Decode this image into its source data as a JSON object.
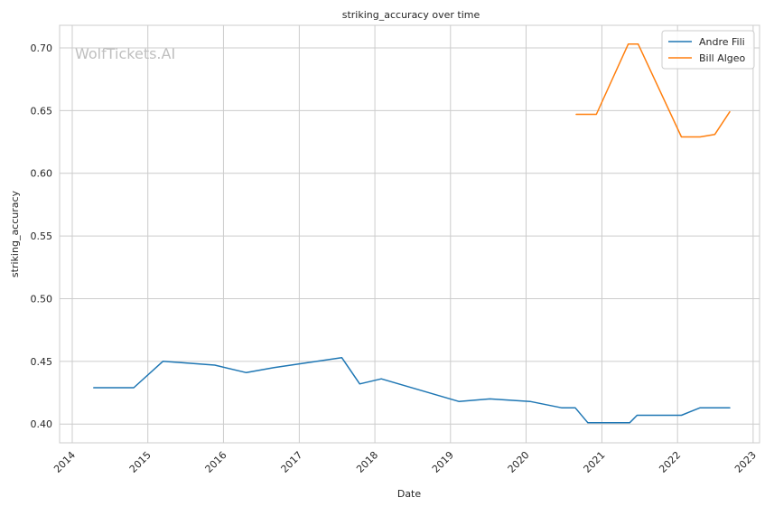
{
  "watermark": "WolfTickets.AI",
  "chart_data": {
    "type": "line",
    "title": "striking_accuracy over time",
    "xlabel": "Date",
    "ylabel": "striking_accuracy",
    "xlim": [
      "2013-11-01",
      "2023-02-01"
    ],
    "ylim": [
      0.385,
      0.718
    ],
    "x_ticks": [
      "2014",
      "2015",
      "2016",
      "2017",
      "2018",
      "2019",
      "2020",
      "2021",
      "2022",
      "2023"
    ],
    "y_ticks": [
      "0.40",
      "0.45",
      "0.50",
      "0.55",
      "0.60",
      "0.65",
      "0.70"
    ],
    "grid": true,
    "legend_position": "top-right",
    "series": [
      {
        "name": "Andre Fili",
        "color": "#1f77b4",
        "points": [
          [
            "2014-04-15",
            0.429
          ],
          [
            "2014-10-25",
            0.429
          ],
          [
            "2015-03-15",
            0.45
          ],
          [
            "2015-11-20",
            0.447
          ],
          [
            "2016-04-20",
            0.441
          ],
          [
            "2016-09-01",
            0.445
          ],
          [
            "2017-07-25",
            0.453
          ],
          [
            "2017-10-20",
            0.432
          ],
          [
            "2018-02-01",
            0.436
          ],
          [
            "2019-02-10",
            0.418
          ],
          [
            "2019-07-10",
            0.42
          ],
          [
            "2020-01-20",
            0.418
          ],
          [
            "2020-06-20",
            0.413
          ],
          [
            "2020-08-25",
            0.413
          ],
          [
            "2020-10-25",
            0.401
          ],
          [
            "2021-05-15",
            0.401
          ],
          [
            "2021-06-20",
            0.407
          ],
          [
            "2022-01-20",
            0.407
          ],
          [
            "2022-04-20",
            0.413
          ],
          [
            "2022-09-10",
            0.413
          ]
        ]
      },
      {
        "name": "Bill Algeo",
        "color": "#ff7f0e",
        "points": [
          [
            "2020-08-30",
            0.647
          ],
          [
            "2020-12-05",
            0.647
          ],
          [
            "2021-05-08",
            0.703
          ],
          [
            "2021-06-25",
            0.703
          ],
          [
            "2022-01-20",
            0.629
          ],
          [
            "2022-04-20",
            0.629
          ],
          [
            "2022-06-30",
            0.631
          ],
          [
            "2022-09-10",
            0.649
          ]
        ]
      }
    ]
  }
}
